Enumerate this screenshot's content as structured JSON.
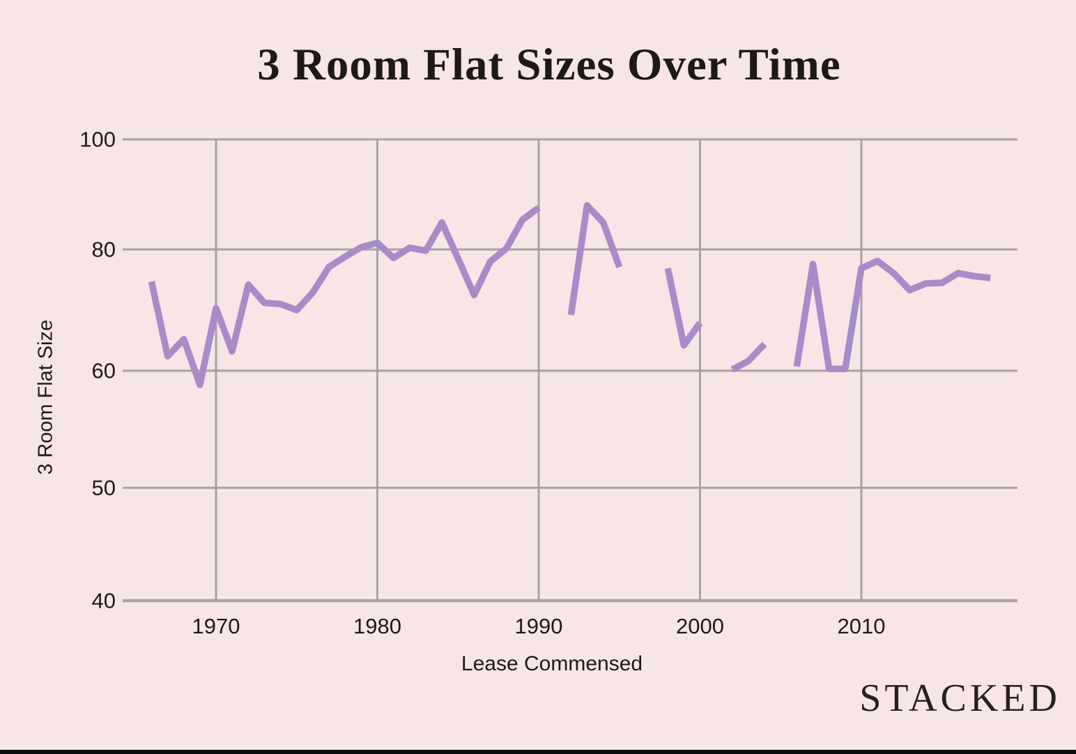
{
  "page": {
    "background_color": "#f8e6e7",
    "bottom_bar_color": "#0d0d0d",
    "text_color": "#1e1917"
  },
  "brand": {
    "logo_text": "STACKED"
  },
  "chart_data": {
    "type": "line",
    "title": "3 Room Flat Sizes Over Time",
    "xlabel": "Lease Commensed",
    "ylabel": "3 Room Flat Size",
    "grid": true,
    "legend": false,
    "line_color": "#a78cc8",
    "grid_color": "#a8a2a1",
    "x_axis": {
      "ticks": [
        1970,
        1980,
        1990,
        2000,
        2010
      ],
      "range": [
        1966,
        2018
      ]
    },
    "y_axis": {
      "ticks": [
        100,
        80,
        60,
        50,
        40
      ],
      "note": "tick labels 40/50/60/80/100 are drawn at evenly spaced screen positions (non-linear value spacing); data line breaks where values are missing"
    },
    "series": [
      {
        "name": "3 Room Flat Size",
        "points": [
          [
            1966,
            74.7
          ],
          [
            1967,
            62.4
          ],
          [
            1968,
            65.2
          ],
          [
            1969,
            58.8
          ],
          [
            1970,
            70.3
          ],
          [
            1971,
            63.2
          ],
          [
            1972,
            74.2
          ],
          [
            1973,
            71.2
          ],
          [
            1974,
            71.0
          ],
          [
            1975,
            70.0
          ],
          [
            1976,
            72.9
          ],
          [
            1977,
            77.1
          ],
          [
            1978,
            78.8
          ],
          [
            1979,
            80.4
          ],
          [
            1980,
            81.2
          ],
          [
            1981,
            78.6
          ],
          [
            1982,
            80.3
          ],
          [
            1983,
            79.8
          ],
          [
            1984,
            84.9
          ],
          [
            1985,
            78.5
          ],
          [
            1986,
            72.5
          ],
          [
            1987,
            78.0
          ],
          [
            1988,
            80.2
          ],
          [
            1989,
            85.4
          ],
          [
            1990,
            87.6
          ],
          [
            1991,
            null
          ],
          [
            1992,
            69.2
          ],
          [
            1993,
            88.0
          ],
          [
            1994,
            84.9
          ],
          [
            1995,
            77.1
          ],
          [
            1996,
            null
          ],
          [
            1997,
            null
          ],
          [
            1998,
            76.9
          ],
          [
            1999,
            64.2
          ],
          [
            2000,
            67.9
          ],
          [
            2001,
            null
          ],
          [
            2002,
            60.2
          ],
          [
            2003,
            61.6
          ],
          [
            2004,
            64.4
          ],
          [
            2005,
            null
          ],
          [
            2006,
            60.7
          ],
          [
            2007,
            77.6
          ],
          [
            2008,
            60.3
          ],
          [
            2009,
            60.3
          ],
          [
            2010,
            76.9
          ],
          [
            2011,
            78.1
          ],
          [
            2012,
            76.1
          ],
          [
            2013,
            73.3
          ],
          [
            2014,
            74.4
          ],
          [
            2015,
            74.5
          ],
          [
            2016,
            76.1
          ],
          [
            2017,
            75.6
          ],
          [
            2018,
            75.3
          ]
        ]
      }
    ]
  }
}
